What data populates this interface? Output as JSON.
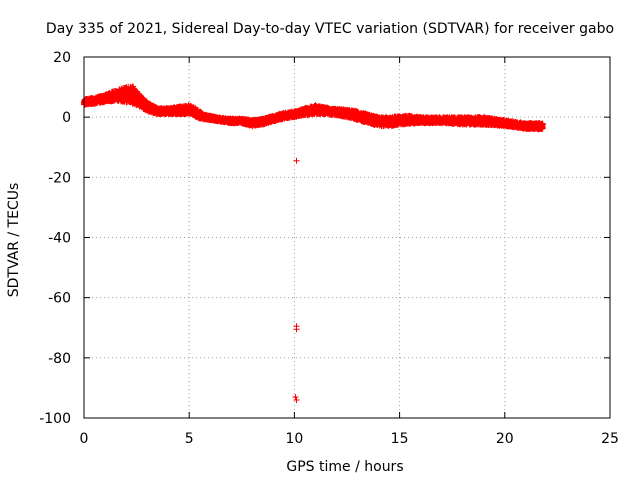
{
  "chart_data": {
    "type": "scatter",
    "title": "Day 335 of 2021, Sidereal Day-to-day VTEC variation (SDTVAR) for receiver gabo",
    "xlabel": "GPS time / hours",
    "ylabel": "SDTVAR / TECUs",
    "xlim": [
      0,
      25
    ],
    "ylim": [
      -100,
      20
    ],
    "xticks": [
      0,
      5,
      10,
      15,
      20,
      25
    ],
    "yticks": [
      -100,
      -80,
      -60,
      -40,
      -20,
      0,
      20
    ],
    "xtick_labels": [
      "0",
      "5",
      "10",
      "15",
      "20",
      "25"
    ],
    "ytick_labels": [
      "-100",
      "-80",
      "-60",
      "-40",
      "-20",
      "0",
      "20"
    ],
    "grid": true,
    "marker": "+",
    "series": [
      {
        "name": "SDTVAR",
        "color": "#ff0000",
        "band_upper": [
          [
            0,
            6
          ],
          [
            0.5,
            6.5
          ],
          [
            1,
            7.5
          ],
          [
            1.5,
            9
          ],
          [
            2,
            10
          ],
          [
            2.3,
            10.5
          ],
          [
            2.6,
            8
          ],
          [
            3,
            5
          ],
          [
            3.5,
            3
          ],
          [
            4,
            3
          ],
          [
            4.5,
            3.5
          ],
          [
            5,
            4
          ],
          [
            5.3,
            3
          ],
          [
            5.7,
            1
          ],
          [
            6.3,
            0
          ],
          [
            7,
            -0.5
          ],
          [
            7.5,
            -0.5
          ],
          [
            8,
            -1
          ],
          [
            8.5,
            -0.5
          ],
          [
            9,
            0.5
          ],
          [
            9.5,
            1.5
          ],
          [
            10,
            2
          ],
          [
            10.5,
            3
          ],
          [
            11,
            4
          ],
          [
            11.3,
            3.5
          ],
          [
            11.7,
            3
          ],
          [
            12.5,
            2.5
          ],
          [
            13,
            2
          ],
          [
            13.5,
            1
          ],
          [
            14,
            0
          ],
          [
            14.5,
            0
          ],
          [
            15,
            0.5
          ],
          [
            15.5,
            0.5
          ],
          [
            16,
            0
          ],
          [
            17,
            0
          ],
          [
            18,
            0
          ],
          [
            19,
            0
          ],
          [
            19.5,
            -0.5
          ],
          [
            20,
            -1
          ],
          [
            21,
            -2
          ],
          [
            21.8,
            -2
          ]
        ],
        "band_lower": [
          [
            0,
            4
          ],
          [
            0.5,
            4.5
          ],
          [
            1,
            5
          ],
          [
            1.5,
            5.5
          ],
          [
            2,
            5
          ],
          [
            2.5,
            4
          ],
          [
            3,
            2
          ],
          [
            3.5,
            1
          ],
          [
            4,
            1
          ],
          [
            4.5,
            1
          ],
          [
            5,
            1
          ],
          [
            5.5,
            -0.5
          ],
          [
            6,
            -1
          ],
          [
            7,
            -2
          ],
          [
            7.5,
            -2
          ],
          [
            8,
            -3
          ],
          [
            8.5,
            -2.5
          ],
          [
            9,
            -1.5
          ],
          [
            9.5,
            -0.5
          ],
          [
            10,
            0
          ],
          [
            10.5,
            0.5
          ],
          [
            11,
            1
          ],
          [
            11.5,
            1
          ],
          [
            12,
            0.5
          ],
          [
            12.5,
            0
          ],
          [
            13,
            -1
          ],
          [
            13.5,
            -2
          ],
          [
            14,
            -3
          ],
          [
            14.5,
            -3
          ],
          [
            15,
            -2.5
          ],
          [
            16,
            -2
          ],
          [
            17,
            -2
          ],
          [
            18,
            -2.5
          ],
          [
            19,
            -2.5
          ],
          [
            20,
            -3
          ],
          [
            20.5,
            -3.5
          ],
          [
            21,
            -4
          ],
          [
            21.8,
            -4
          ]
        ],
        "outliers": [
          [
            10.1,
            -14.5
          ],
          [
            10.1,
            -69.5
          ],
          [
            10.1,
            -70.5
          ],
          [
            10.05,
            -93
          ],
          [
            10.1,
            -94
          ]
        ]
      }
    ]
  }
}
